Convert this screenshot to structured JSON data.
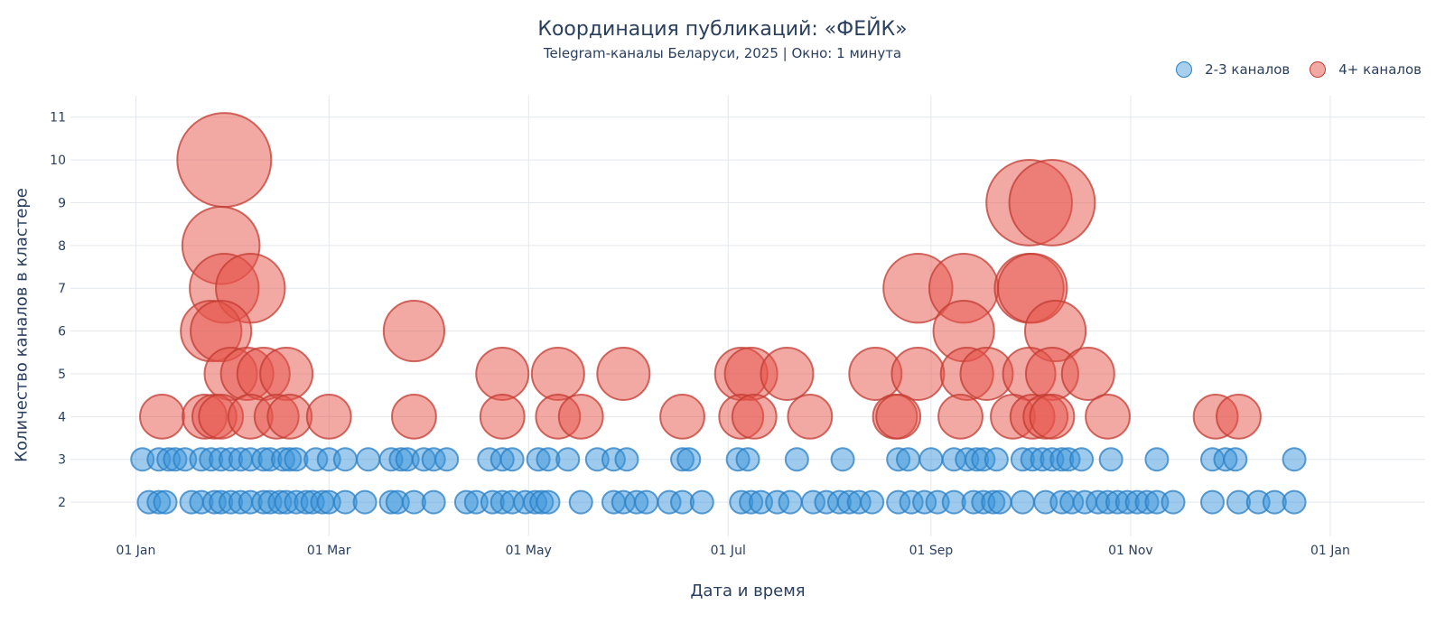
{
  "chart_data": {
    "type": "scatter",
    "title": "Координация публикаций: «ФЕЙК»",
    "subtitle": "Telegram-каналы Беларуси, 2025 | Окно: 1 минута",
    "xlabel": "Дата и время",
    "ylabel": "Количество каналов в кластере",
    "x_unit": "day of year 2025 (1 = 01 Jan)",
    "xlim": [
      -19,
      395
    ],
    "ylim": [
      1.2,
      11.5
    ],
    "x_ticks": [
      {
        "value": 1,
        "label": "01 Jan"
      },
      {
        "value": 60,
        "label": "01 Mar"
      },
      {
        "value": 121,
        "label": "01 May"
      },
      {
        "value": 182,
        "label": "01 Jul"
      },
      {
        "value": 244,
        "label": "01 Sep"
      },
      {
        "value": 305,
        "label": "01 Nov"
      },
      {
        "value": 366,
        "label": "01 Jan"
      }
    ],
    "y_ticks": [
      2,
      3,
      4,
      5,
      6,
      7,
      8,
      9,
      10,
      11
    ],
    "legend_position": "top-right",
    "series": [
      {
        "name": "2-3 каналов",
        "color": "#3b96dc",
        "points": [
          {
            "x": 3,
            "y": 3
          },
          {
            "x": 8,
            "y": 3
          },
          {
            "x": 11,
            "y": 3
          },
          {
            "x": 13,
            "y": 3
          },
          {
            "x": 16,
            "y": 3
          },
          {
            "x": 21,
            "y": 3
          },
          {
            "x": 24,
            "y": 3
          },
          {
            "x": 27,
            "y": 3
          },
          {
            "x": 30,
            "y": 3
          },
          {
            "x": 33,
            "y": 3
          },
          {
            "x": 36,
            "y": 3
          },
          {
            "x": 40,
            "y": 3
          },
          {
            "x": 42,
            "y": 3
          },
          {
            "x": 46,
            "y": 3
          },
          {
            "x": 48,
            "y": 3
          },
          {
            "x": 50,
            "y": 3
          },
          {
            "x": 56,
            "y": 3
          },
          {
            "x": 60,
            "y": 3
          },
          {
            "x": 65,
            "y": 3
          },
          {
            "x": 72,
            "y": 3
          },
          {
            "x": 79,
            "y": 3
          },
          {
            "x": 82,
            "y": 3
          },
          {
            "x": 84,
            "y": 3
          },
          {
            "x": 89,
            "y": 3
          },
          {
            "x": 92,
            "y": 3
          },
          {
            "x": 96,
            "y": 3
          },
          {
            "x": 109,
            "y": 3
          },
          {
            "x": 113,
            "y": 3
          },
          {
            "x": 116,
            "y": 3
          },
          {
            "x": 124,
            "y": 3
          },
          {
            "x": 127,
            "y": 3
          },
          {
            "x": 133,
            "y": 3
          },
          {
            "x": 142,
            "y": 3
          },
          {
            "x": 147,
            "y": 3
          },
          {
            "x": 151,
            "y": 3
          },
          {
            "x": 168,
            "y": 3
          },
          {
            "x": 170,
            "y": 3
          },
          {
            "x": 185,
            "y": 3
          },
          {
            "x": 188,
            "y": 3
          },
          {
            "x": 203,
            "y": 3
          },
          {
            "x": 217,
            "y": 3
          },
          {
            "x": 234,
            "y": 3
          },
          {
            "x": 237,
            "y": 3
          },
          {
            "x": 244,
            "y": 3
          },
          {
            "x": 251,
            "y": 3
          },
          {
            "x": 255,
            "y": 3
          },
          {
            "x": 258,
            "y": 3
          },
          {
            "x": 260,
            "y": 3
          },
          {
            "x": 264,
            "y": 3
          },
          {
            "x": 272,
            "y": 3
          },
          {
            "x": 275,
            "y": 3
          },
          {
            "x": 278,
            "y": 3
          },
          {
            "x": 281,
            "y": 3
          },
          {
            "x": 284,
            "y": 3
          },
          {
            "x": 286,
            "y": 3
          },
          {
            "x": 290,
            "y": 3
          },
          {
            "x": 299,
            "y": 3
          },
          {
            "x": 313,
            "y": 3
          },
          {
            "x": 330,
            "y": 3
          },
          {
            "x": 334,
            "y": 3
          },
          {
            "x": 337,
            "y": 3
          },
          {
            "x": 355,
            "y": 3
          },
          {
            "x": 5,
            "y": 2
          },
          {
            "x": 8,
            "y": 2
          },
          {
            "x": 10,
            "y": 2
          },
          {
            "x": 18,
            "y": 2
          },
          {
            "x": 21,
            "y": 2
          },
          {
            "x": 25,
            "y": 2
          },
          {
            "x": 27,
            "y": 2
          },
          {
            "x": 30,
            "y": 2
          },
          {
            "x": 33,
            "y": 2
          },
          {
            "x": 36,
            "y": 2
          },
          {
            "x": 40,
            "y": 2
          },
          {
            "x": 42,
            "y": 2
          },
          {
            "x": 45,
            "y": 2
          },
          {
            "x": 47,
            "y": 2
          },
          {
            "x": 50,
            "y": 2
          },
          {
            "x": 53,
            "y": 2
          },
          {
            "x": 55,
            "y": 2
          },
          {
            "x": 58,
            "y": 2
          },
          {
            "x": 60,
            "y": 2
          },
          {
            "x": 65,
            "y": 2
          },
          {
            "x": 71,
            "y": 2
          },
          {
            "x": 79,
            "y": 2
          },
          {
            "x": 81,
            "y": 2
          },
          {
            "x": 86,
            "y": 2
          },
          {
            "x": 92,
            "y": 2
          },
          {
            "x": 102,
            "y": 2
          },
          {
            "x": 105,
            "y": 2
          },
          {
            "x": 110,
            "y": 2
          },
          {
            "x": 113,
            "y": 2
          },
          {
            "x": 116,
            "y": 2
          },
          {
            "x": 120,
            "y": 2
          },
          {
            "x": 123,
            "y": 2
          },
          {
            "x": 125,
            "y": 2
          },
          {
            "x": 127,
            "y": 2
          },
          {
            "x": 137,
            "y": 2
          },
          {
            "x": 147,
            "y": 2
          },
          {
            "x": 150,
            "y": 2
          },
          {
            "x": 154,
            "y": 2
          },
          {
            "x": 157,
            "y": 2
          },
          {
            "x": 164,
            "y": 2
          },
          {
            "x": 168,
            "y": 2
          },
          {
            "x": 174,
            "y": 2
          },
          {
            "x": 186,
            "y": 2
          },
          {
            "x": 189,
            "y": 2
          },
          {
            "x": 192,
            "y": 2
          },
          {
            "x": 197,
            "y": 2
          },
          {
            "x": 201,
            "y": 2
          },
          {
            "x": 208,
            "y": 2
          },
          {
            "x": 212,
            "y": 2
          },
          {
            "x": 216,
            "y": 2
          },
          {
            "x": 219,
            "y": 2
          },
          {
            "x": 222,
            "y": 2
          },
          {
            "x": 226,
            "y": 2
          },
          {
            "x": 234,
            "y": 2
          },
          {
            "x": 238,
            "y": 2
          },
          {
            "x": 242,
            "y": 2
          },
          {
            "x": 246,
            "y": 2
          },
          {
            "x": 251,
            "y": 2
          },
          {
            "x": 257,
            "y": 2
          },
          {
            "x": 260,
            "y": 2
          },
          {
            "x": 263,
            "y": 2
          },
          {
            "x": 265,
            "y": 2
          },
          {
            "x": 272,
            "y": 2
          },
          {
            "x": 279,
            "y": 2
          },
          {
            "x": 284,
            "y": 2
          },
          {
            "x": 287,
            "y": 2
          },
          {
            "x": 291,
            "y": 2
          },
          {
            "x": 295,
            "y": 2
          },
          {
            "x": 298,
            "y": 2
          },
          {
            "x": 301,
            "y": 2
          },
          {
            "x": 304,
            "y": 2
          },
          {
            "x": 307,
            "y": 2
          },
          {
            "x": 310,
            "y": 2
          },
          {
            "x": 313,
            "y": 2
          },
          {
            "x": 318,
            "y": 2
          },
          {
            "x": 330,
            "y": 2
          },
          {
            "x": 338,
            "y": 2
          },
          {
            "x": 344,
            "y": 2
          },
          {
            "x": 349,
            "y": 2
          },
          {
            "x": 355,
            "y": 2
          }
        ]
      },
      {
        "name": "4+ каналов",
        "color": "#e5544a",
        "points": [
          {
            "x": 28,
            "y": 10
          },
          {
            "x": 27,
            "y": 8
          },
          {
            "x": 28,
            "y": 7
          },
          {
            "x": 36,
            "y": 7
          },
          {
            "x": 24,
            "y": 6
          },
          {
            "x": 27,
            "y": 6
          },
          {
            "x": 30,
            "y": 5
          },
          {
            "x": 35,
            "y": 5
          },
          {
            "x": 40,
            "y": 5
          },
          {
            "x": 47,
            "y": 5
          },
          {
            "x": 9,
            "y": 4
          },
          {
            "x": 22,
            "y": 4
          },
          {
            "x": 25,
            "y": 4
          },
          {
            "x": 27,
            "y": 4
          },
          {
            "x": 36,
            "y": 4
          },
          {
            "x": 44,
            "y": 4
          },
          {
            "x": 48,
            "y": 4
          },
          {
            "x": 60,
            "y": 4
          },
          {
            "x": 86,
            "y": 6
          },
          {
            "x": 86,
            "y": 4
          },
          {
            "x": 113,
            "y": 5
          },
          {
            "x": 113,
            "y": 4
          },
          {
            "x": 130,
            "y": 5
          },
          {
            "x": 130,
            "y": 4
          },
          {
            "x": 137,
            "y": 4
          },
          {
            "x": 150,
            "y": 5
          },
          {
            "x": 168,
            "y": 4
          },
          {
            "x": 186,
            "y": 5
          },
          {
            "x": 189,
            "y": 5
          },
          {
            "x": 186,
            "y": 4
          },
          {
            "x": 190,
            "y": 4
          },
          {
            "x": 200,
            "y": 5
          },
          {
            "x": 207,
            "y": 4
          },
          {
            "x": 227,
            "y": 5
          },
          {
            "x": 233,
            "y": 4
          },
          {
            "x": 234,
            "y": 4
          },
          {
            "x": 240,
            "y": 7
          },
          {
            "x": 240,
            "y": 5
          },
          {
            "x": 254,
            "y": 7
          },
          {
            "x": 254,
            "y": 6
          },
          {
            "x": 255,
            "y": 5
          },
          {
            "x": 261,
            "y": 5
          },
          {
            "x": 253,
            "y": 4
          },
          {
            "x": 274,
            "y": 9
          },
          {
            "x": 281,
            "y": 9
          },
          {
            "x": 274,
            "y": 7
          },
          {
            "x": 275,
            "y": 7
          },
          {
            "x": 282,
            "y": 6
          },
          {
            "x": 274,
            "y": 5
          },
          {
            "x": 281,
            "y": 5
          },
          {
            "x": 269,
            "y": 4
          },
          {
            "x": 275,
            "y": 4
          },
          {
            "x": 279,
            "y": 4
          },
          {
            "x": 281,
            "y": 4
          },
          {
            "x": 292,
            "y": 5
          },
          {
            "x": 298,
            "y": 4
          },
          {
            "x": 331,
            "y": 4
          },
          {
            "x": 338,
            "y": 4
          }
        ]
      }
    ]
  }
}
